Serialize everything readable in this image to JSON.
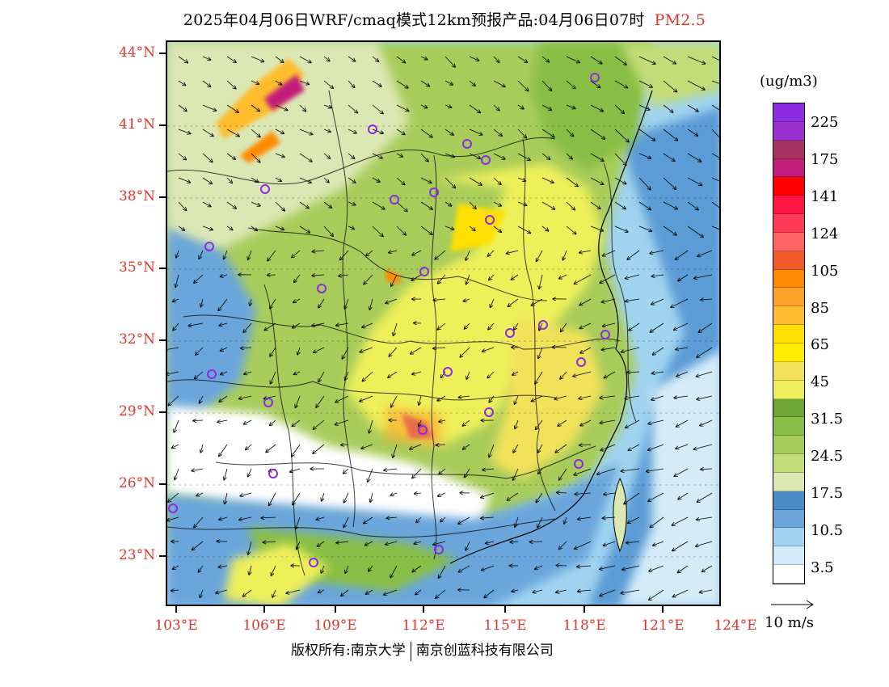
{
  "title": {
    "main": "2025年04月06日WRF/cmaq模式12km预报产品:04月06日07时",
    "product": "PM2.5"
  },
  "map": {
    "lat_labels": [
      "44°N",
      "41°N",
      "38°N",
      "35°N",
      "32°N",
      "29°N",
      "26°N",
      "23°N"
    ],
    "lon_labels": [
      "103°E",
      "106°E",
      "109°E",
      "112°E",
      "115°E",
      "118°E",
      "121°E",
      "124°E"
    ],
    "layers": [
      "pm25-concentration-field",
      "wind-vectors",
      "province-boundaries",
      "city-markers"
    ]
  },
  "legend": {
    "unit": "(ug/m3)",
    "swatches": [
      {
        "color": "#8b2be2"
      },
      {
        "color": "#9b30d0"
      },
      {
        "color": "#a83260"
      },
      {
        "color": "#c21d7a"
      },
      {
        "color": "#ff0000"
      },
      {
        "color": "#ff1446"
      },
      {
        "color": "#ff3a56"
      },
      {
        "color": "#ff6464"
      },
      {
        "color": "#f25a2a"
      },
      {
        "color": "#ff8a00"
      },
      {
        "color": "#ffa22c"
      },
      {
        "color": "#ffbd2e"
      },
      {
        "color": "#ffe000"
      },
      {
        "color": "#ffee00"
      },
      {
        "color": "#f2e25a"
      },
      {
        "color": "#eef05a"
      },
      {
        "color": "#6ea534"
      },
      {
        "color": "#88be45"
      },
      {
        "color": "#a8cc5a"
      },
      {
        "color": "#c2dc78"
      },
      {
        "color": "#dbe8b4"
      },
      {
        "color": "#4a8cc8"
      },
      {
        "color": "#6aa6dc"
      },
      {
        "color": "#a0d4f0"
      },
      {
        "color": "#d4ecf8"
      },
      {
        "color": "#ffffff"
      }
    ],
    "labels": [
      "225",
      "175",
      "141",
      "124",
      "105",
      "85",
      "65",
      "45",
      "31.5",
      "24.5",
      "17.5",
      "10.5",
      "3.5"
    ]
  },
  "vector_key": {
    "label": "10 m/s"
  },
  "footer": {
    "left": "版权所有:南京大学",
    "right": "南京创蓝科技有限公司"
  }
}
